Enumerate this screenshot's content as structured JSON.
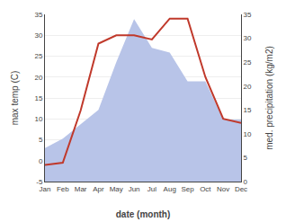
{
  "chart_data": {
    "type": "line",
    "categories": [
      "Jan",
      "Feb",
      "Mar",
      "Apr",
      "May",
      "Jun",
      "Jul",
      "Aug",
      "Sep",
      "Oct",
      "Nov",
      "Dec"
    ],
    "xlabel": "date (month)",
    "ylabel": "max temp (C)",
    "y2label": "med. precipitation (kg/m2)",
    "series": [
      {
        "type": "area",
        "axis": "y2",
        "color": "#b8c4e8",
        "values": [
          7,
          9,
          12,
          15,
          25,
          34,
          28,
          27,
          21,
          21,
          13,
          13
        ]
      },
      {
        "type": "line",
        "color": "#c0392b",
        "values": [
          -1,
          -0.5,
          12,
          28,
          30,
          30,
          29,
          34,
          34,
          20,
          10,
          9
        ]
      }
    ],
    "ylim": [
      -5,
      35
    ],
    "yticks": [
      -5,
      0,
      5,
      10,
      15,
      20,
      25,
      30,
      35
    ],
    "y2lim": [
      0,
      35
    ],
    "y2ticks": [
      0,
      5,
      10,
      15,
      20,
      25,
      30,
      35
    ],
    "grid": true
  }
}
